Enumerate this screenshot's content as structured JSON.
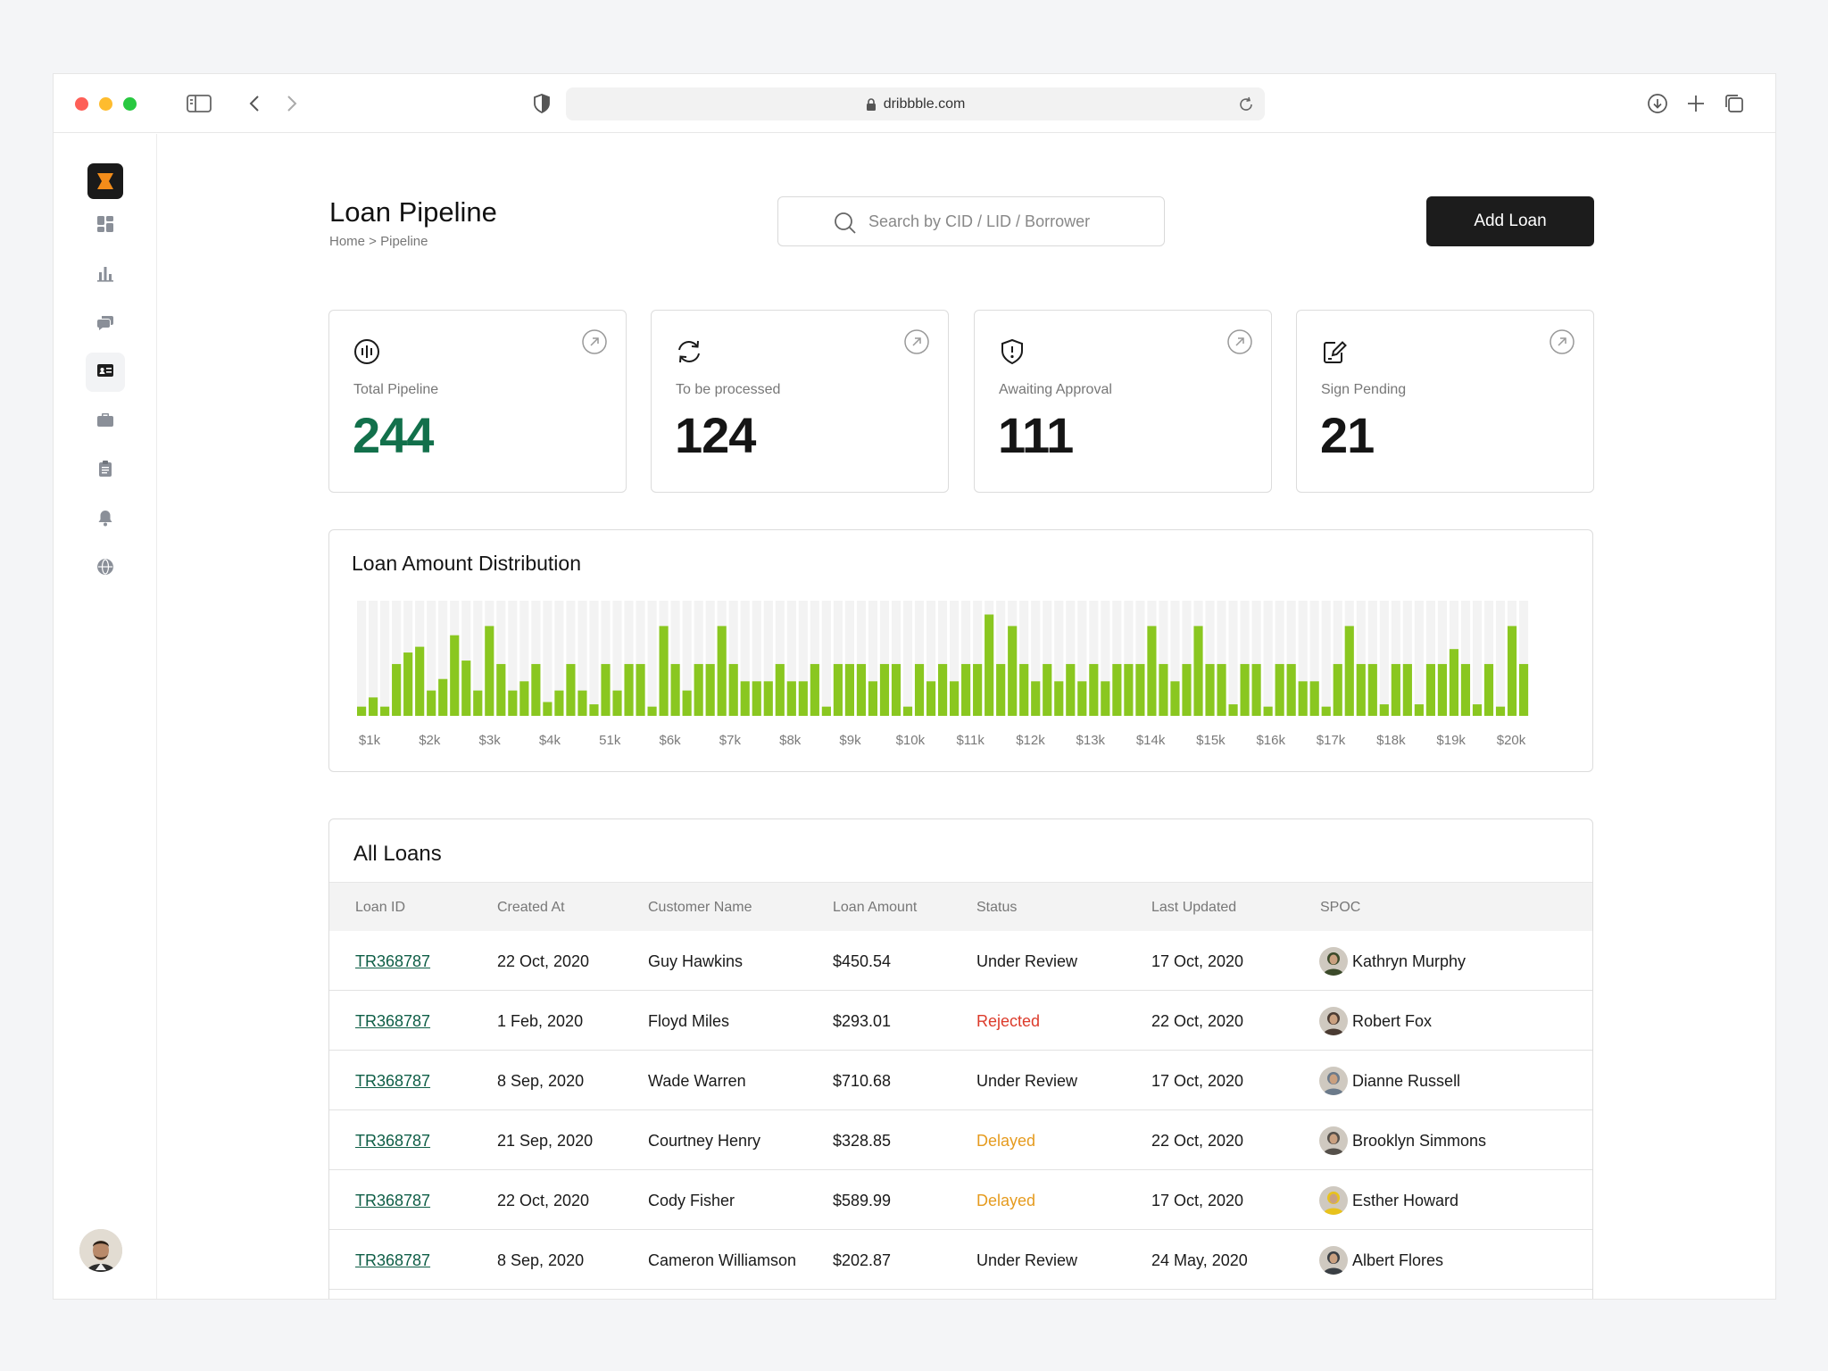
{
  "browser": {
    "url": "dribbble.com",
    "icons": [
      "sidebar-toggle-icon",
      "back-icon",
      "forward-icon",
      "shield-icon",
      "lock-icon",
      "reload-icon",
      "download-icon",
      "plus-icon",
      "tabs-icon"
    ]
  },
  "sidebar": {
    "items": [
      {
        "name": "dashboard",
        "icon": "dashboard-icon"
      },
      {
        "name": "analytics",
        "icon": "bar-chart-icon"
      },
      {
        "name": "messages",
        "icon": "chat-icon"
      },
      {
        "name": "loans",
        "icon": "id-card-icon",
        "active": true
      },
      {
        "name": "portfolio",
        "icon": "briefcase-icon"
      },
      {
        "name": "tasks",
        "icon": "clipboard-icon"
      },
      {
        "name": "notifications",
        "icon": "bell-icon"
      },
      {
        "name": "global",
        "icon": "globe-icon"
      }
    ]
  },
  "header": {
    "title": "Loan Pipeline",
    "breadcrumb": "Home > Pipeline",
    "search_placeholder": "Search by CID / LID / Borrower",
    "add_button": "Add Loan"
  },
  "stats": [
    {
      "label": "Total Pipeline",
      "value": "244",
      "icon": "pulse-icon",
      "color": "#12704b"
    },
    {
      "label": "To be processed",
      "value": "124",
      "icon": "refresh-icon",
      "color": "#151515"
    },
    {
      "label": "Awaiting Approval",
      "value": "111",
      "icon": "shield-alert-icon",
      "color": "#151515"
    },
    {
      "label": "Sign Pending",
      "value": "21",
      "icon": "sign-icon",
      "color": "#151515"
    }
  ],
  "chart": {
    "title": "Loan Amount Distribution"
  },
  "chart_data": {
    "type": "bar",
    "title": "Loan Amount Distribution",
    "xlabel": "",
    "ylabel": "",
    "x_ticks": [
      "$1k",
      "$2k",
      "$3k",
      "$4k",
      "51k",
      "$6k",
      "$7k",
      "$8k",
      "$9k",
      "$10k",
      "$11k",
      "$12k",
      "$13k",
      "$14k",
      "$15k",
      "$16k",
      "$17k",
      "$18k",
      "$19k",
      "$20k"
    ],
    "ylim": [
      0,
      100
    ],
    "bar_color": "#8ac720",
    "track_color": "#f3f3f3",
    "values": [
      8,
      16,
      8,
      45,
      55,
      60,
      22,
      32,
      70,
      48,
      22,
      78,
      45,
      22,
      30,
      45,
      12,
      22,
      45,
      22,
      10,
      45,
      22,
      45,
      45,
      8,
      78,
      45,
      22,
      45,
      45,
      78,
      45,
      30,
      30,
      30,
      45,
      30,
      30,
      45,
      8,
      45,
      45,
      45,
      30,
      45,
      45,
      8,
      45,
      30,
      45,
      30,
      45,
      45,
      88,
      45,
      78,
      45,
      30,
      45,
      30,
      45,
      30,
      45,
      30,
      45,
      45,
      45,
      78,
      45,
      30,
      45,
      78,
      45,
      45,
      10,
      45,
      45,
      8,
      45,
      45,
      30,
      30,
      8,
      45,
      78,
      45,
      45,
      10,
      45,
      45,
      10,
      45,
      45,
      58,
      45,
      10,
      45,
      8,
      78,
      45
    ]
  },
  "table": {
    "title": "All Loans",
    "columns": [
      "Loan ID",
      "Created At",
      "Customer Name",
      "Loan Amount",
      "Status",
      "Last Updated",
      "SPOC"
    ],
    "rows": [
      {
        "id": "TR368787",
        "created": "22 Oct, 2020",
        "customer": "Guy Hawkins",
        "amount": "$450.54",
        "status": "Under Review",
        "status_type": "normal",
        "updated": "17 Oct, 2020",
        "spoc": "Kathryn Murphy",
        "avatar_color": "#3b4a2a"
      },
      {
        "id": "TR368787",
        "created": "1 Feb, 2020",
        "customer": "Floyd Miles",
        "amount": "$293.01",
        "status": "Rejected",
        "status_type": "rejected",
        "updated": "22 Oct, 2020",
        "spoc": "Robert Fox",
        "avatar_color": "#4a3b32"
      },
      {
        "id": "TR368787",
        "created": "8 Sep, 2020",
        "customer": "Wade Warren",
        "amount": "$710.68",
        "status": "Under Review",
        "status_type": "normal",
        "updated": "17 Oct, 2020",
        "spoc": "Dianne Russell",
        "avatar_color": "#6b7a8a"
      },
      {
        "id": "TR368787",
        "created": "21 Sep, 2020",
        "customer": "Courtney Henry",
        "amount": "$328.85",
        "status": "Delayed",
        "status_type": "delayed",
        "updated": "22 Oct, 2020",
        "spoc": "Brooklyn Simmons",
        "avatar_color": "#55504a"
      },
      {
        "id": "TR368787",
        "created": "22 Oct, 2020",
        "customer": "Cody Fisher",
        "amount": "$589.99",
        "status": "Delayed",
        "status_type": "delayed",
        "updated": "17 Oct, 2020",
        "spoc": "Esther Howard",
        "avatar_color": "#e8c21c"
      },
      {
        "id": "TR368787",
        "created": "8 Sep, 2020",
        "customer": "Cameron Williamson",
        "amount": "$202.87",
        "status": "Under Review",
        "status_type": "normal",
        "updated": "24 May, 2020",
        "spoc": "Albert Flores",
        "avatar_color": "#3a3f44"
      }
    ]
  }
}
